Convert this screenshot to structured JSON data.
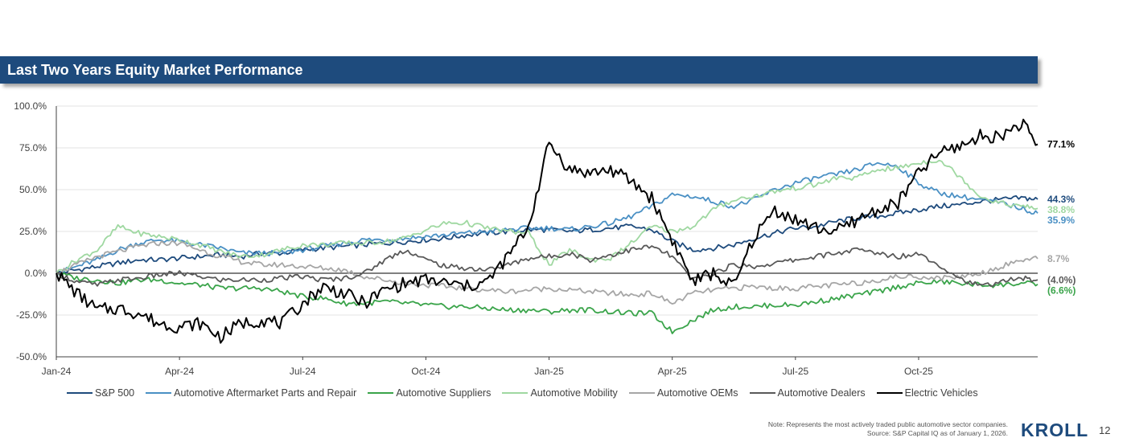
{
  "header": {
    "title": "Last Two Years Equity Market Performance"
  },
  "chart_data": {
    "type": "line",
    "title": "",
    "xlabel": "",
    "ylabel": "",
    "x_tick_labels": [
      "Jan-24",
      "Apr-24",
      "Jul-24",
      "Oct-24",
      "Jan-25",
      "Apr-25",
      "Jul-25",
      "Oct-25"
    ],
    "x_ticks_month_index": [
      0,
      3,
      6,
      9,
      12,
      15,
      18,
      21
    ],
    "x_range_months": [
      0,
      23.9
    ],
    "ylim": [
      -50,
      100
    ],
    "y_ticks": [
      -50,
      -25,
      0,
      25,
      50,
      75,
      100
    ],
    "y_tick_labels": [
      "-50.0%",
      "-25.0%",
      "0.0%",
      "25.0%",
      "50.0%",
      "75.0%",
      "100.0%"
    ],
    "grid": "horizontal",
    "legend_position": "bottom",
    "x_month_points": [
      0,
      0.5,
      1,
      1.5,
      2,
      2.5,
      3,
      3.5,
      4,
      4.5,
      5,
      5.5,
      6,
      6.5,
      7,
      7.5,
      8,
      8.5,
      9,
      9.5,
      10,
      10.5,
      11,
      11.5,
      12,
      12.5,
      13,
      13.5,
      14,
      14.5,
      15,
      15.5,
      16,
      16.5,
      17,
      17.5,
      18,
      18.5,
      19,
      19.5,
      20,
      20.5,
      21,
      21.5,
      22,
      22.5,
      23,
      23.5,
      23.9
    ],
    "series": [
      {
        "name": "S&P 500",
        "color": "#1e4b7d",
        "end_label": "44.3%",
        "values": [
          0,
          2,
          4,
          6,
          8,
          8,
          9,
          10,
          11,
          10,
          12,
          12,
          14,
          15,
          16,
          17,
          18,
          19,
          20,
          21,
          23,
          24,
          25,
          26,
          26,
          25,
          26,
          27,
          28,
          26,
          19,
          14,
          15,
          17,
          21,
          24,
          27,
          28,
          31,
          33,
          34,
          36,
          38,
          40,
          41,
          43,
          44,
          45,
          44.3
        ]
      },
      {
        "name": "Automotive Aftermarket Parts and Repair",
        "color": "#4a90c4",
        "end_label": "35.9%",
        "values": [
          0,
          4,
          8,
          14,
          18,
          20,
          19,
          17,
          15,
          12,
          12,
          12,
          14,
          16,
          18,
          20,
          20,
          21,
          22,
          23,
          24,
          25,
          26,
          27,
          27,
          26,
          28,
          30,
          34,
          40,
          47,
          46,
          43,
          40,
          44,
          50,
          54,
          57,
          59,
          62,
          66,
          64,
          54,
          48,
          46,
          44,
          42,
          39,
          35.9
        ]
      },
      {
        "name": "Automotive Suppliers",
        "color": "#3aa44a",
        "end_label": "(6.6%)",
        "values": [
          0,
          -3,
          -4,
          -6,
          -4,
          -4,
          -6,
          -7,
          -9,
          -9,
          -9,
          -11,
          -14,
          -15,
          -18,
          -18,
          -17,
          -18,
          -19,
          -20,
          -20,
          -21,
          -22,
          -22,
          -23,
          -22,
          -22,
          -23,
          -24,
          -24,
          -35,
          -28,
          -22,
          -20,
          -20,
          -19,
          -19,
          -17,
          -15,
          -13,
          -11,
          -8,
          -6,
          -5,
          -6,
          -7,
          -7,
          -6,
          -6.6
        ]
      },
      {
        "name": "Automotive Mobility",
        "color": "#9fd8a1",
        "end_label": "38.8%",
        "values": [
          0,
          8,
          14,
          28,
          24,
          22,
          20,
          17,
          13,
          10,
          11,
          14,
          17,
          17,
          18,
          18,
          19,
          21,
          26,
          30,
          30,
          27,
          25,
          24,
          5,
          14,
          8,
          9,
          18,
          28,
          25,
          28,
          38,
          44,
          46,
          49,
          51,
          53,
          57,
          57,
          62,
          63,
          66,
          68,
          58,
          46,
          42,
          40,
          38.8
        ]
      },
      {
        "name": "Automotive OEMs",
        "color": "#a6a6a6",
        "end_label": "8.7%",
        "values": [
          0,
          5,
          10,
          13,
          16,
          18,
          18,
          14,
          10,
          7,
          5,
          5,
          4,
          3,
          2,
          -2,
          -4,
          -6,
          -7,
          -8,
          -9,
          -10,
          -11,
          -10,
          -9,
          -10,
          -11,
          -12,
          -13,
          -12,
          -18,
          -12,
          -10,
          -9,
          -8,
          -9,
          -9,
          -8,
          -7,
          -6,
          -4,
          -2,
          -2,
          -3,
          -2,
          0,
          4,
          8,
          8.7
        ]
      },
      {
        "name": "Automotive Dealers",
        "color": "#595959",
        "end_label": "(4.0%)",
        "values": [
          0,
          -5,
          -7,
          -4,
          -3,
          -1,
          0,
          -2,
          -4,
          -4,
          -4,
          -3,
          -2,
          -4,
          -3,
          0,
          8,
          14,
          8,
          4,
          3,
          2,
          5,
          9,
          10,
          12,
          8,
          11,
          14,
          16,
          10,
          -4,
          0,
          5,
          4,
          6,
          8,
          10,
          12,
          14,
          12,
          10,
          12,
          5,
          -3,
          -8,
          -5,
          -3,
          -4
        ]
      },
      {
        "name": "Electric Vehicles",
        "color": "#000000",
        "end_label": "77.1%",
        "values": [
          0,
          -12,
          -22,
          -21,
          -24,
          -30,
          -32,
          -30,
          -38,
          -30,
          -28,
          -30,
          -18,
          -8,
          -12,
          -18,
          -10,
          -6,
          -4,
          -6,
          -8,
          -5,
          10,
          28,
          78,
          62,
          60,
          62,
          55,
          45,
          20,
          -5,
          0,
          -8,
          22,
          38,
          32,
          27,
          25,
          32,
          38,
          42,
          60,
          72,
          76,
          82,
          82,
          90,
          77.1
        ]
      }
    ]
  },
  "legend": {
    "items": [
      {
        "label": "S&P 500",
        "color": "#1e4b7d"
      },
      {
        "label": "Automotive Aftermarket Parts and Repair",
        "color": "#4a90c4"
      },
      {
        "label": "Automotive Suppliers",
        "color": "#3aa44a"
      },
      {
        "label": "Automotive Mobility",
        "color": "#9fd8a1"
      },
      {
        "label": "Automotive OEMs",
        "color": "#a6a6a6"
      },
      {
        "label": "Automotive Dealers",
        "color": "#595959"
      },
      {
        "label": "Electric Vehicles",
        "color": "#000000"
      }
    ]
  },
  "footer": {
    "note": "Note: Represents the most actively traded public automotive sector companies.",
    "source": "Source: S&P Capital IQ as of January 1, 2026.",
    "logo_text": "KROLL",
    "page_number": "12"
  }
}
